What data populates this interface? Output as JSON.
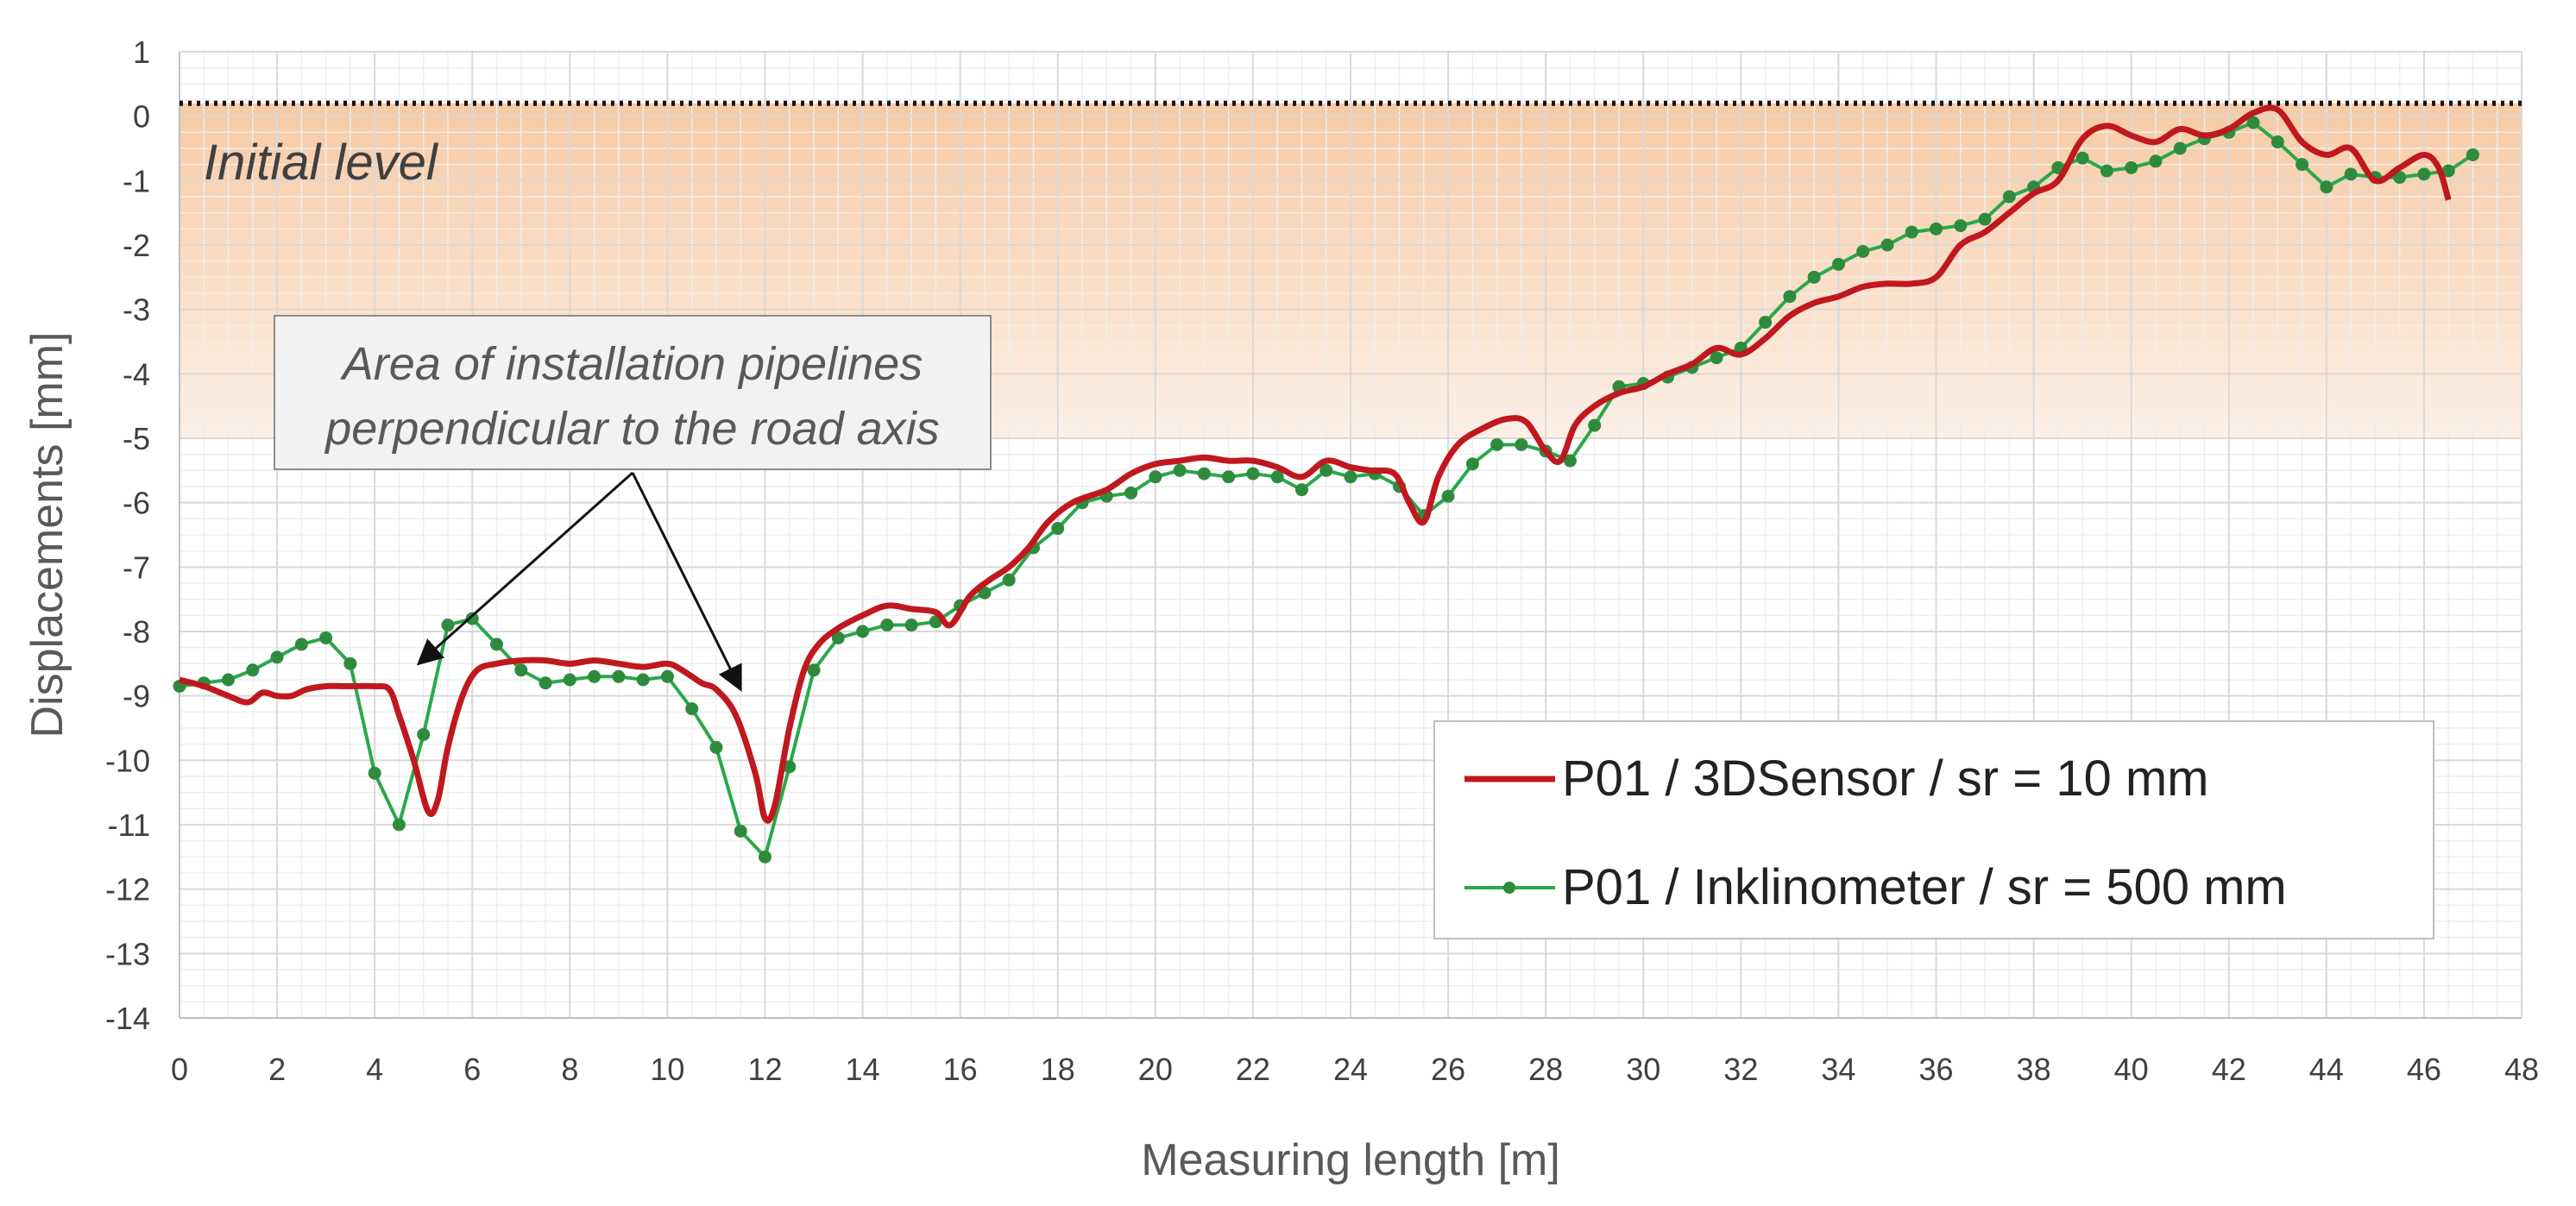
{
  "colors": {
    "series_red": "#c0181e",
    "series_green": "#2aa84a",
    "marker_green": "#2e8b3e",
    "band_top": "#f6c49b",
    "band_bottom": "#fdeee2",
    "grid_major": "#d9d9d9",
    "grid_minor": "#eeeeee"
  },
  "chart_data": {
    "type": "line",
    "xlabel": "Measuring length [m]",
    "ylabel": "Displacements [mm]",
    "xlim": [
      0,
      48
    ],
    "ylim": [
      -14,
      1
    ],
    "x_ticks": [
      "0",
      "2",
      "4",
      "6",
      "8",
      "10",
      "12",
      "14",
      "16",
      "18",
      "20",
      "22",
      "24",
      "26",
      "28",
      "30",
      "32",
      "34",
      "36",
      "38",
      "40",
      "42",
      "44",
      "46",
      "48"
    ],
    "y_ticks": [
      "1",
      "0",
      "-1",
      "-2",
      "-3",
      "-4",
      "-5",
      "-6",
      "-7",
      "-8",
      "-9",
      "-10",
      "-11",
      "-12",
      "-13",
      "-14"
    ],
    "reference_line": {
      "label": "Initial level",
      "value": 0.2
    },
    "shaded_band": {
      "from": 0.2,
      "to": -5
    },
    "annotation": {
      "lines": [
        "Area of installation pipelines",
        "perpendicular to the road axis"
      ],
      "arrow_targets": [
        [
          4.9,
          -8.5
        ],
        [
          11.5,
          -8.9
        ]
      ]
    },
    "legend_position": "lower-right",
    "series": [
      {
        "name": "P01 / 3DSensor / sr = 10 mm",
        "style": "line",
        "x": [
          0,
          0.5,
          1,
          1.4,
          1.7,
          2,
          2.3,
          2.6,
          3,
          3.5,
          4,
          4.3,
          4.5,
          4.8,
          5.1,
          5.3,
          5.5,
          5.8,
          6.1,
          6.5,
          7,
          7.5,
          8,
          8.5,
          9,
          9.5,
          10,
          10.3,
          10.7,
          11,
          11.4,
          11.8,
          12,
          12.2,
          12.5,
          12.8,
          13.1,
          13.5,
          14,
          14.5,
          15,
          15.5,
          15.8,
          16.2,
          16.6,
          17,
          17.4,
          17.8,
          18.3,
          19,
          19.5,
          20,
          20.5,
          21,
          21.5,
          22,
          22.5,
          23,
          23.5,
          24,
          24.4,
          24.9,
          25.2,
          25.5,
          25.8,
          26.2,
          26.7,
          27.2,
          27.6,
          28,
          28.3,
          28.6,
          29,
          29.5,
          30,
          30.5,
          31,
          31.5,
          32,
          32.5,
          33,
          33.5,
          34,
          34.5,
          35,
          35.5,
          36,
          36.5,
          37,
          37.5,
          38,
          38.5,
          39,
          39.5,
          40,
          40.5,
          41,
          41.5,
          42,
          42.5,
          43,
          43.5,
          44,
          44.5,
          45,
          45.5,
          46,
          46.3,
          46.5
        ],
        "y": [
          -8.75,
          -8.85,
          -9.0,
          -9.1,
          -8.95,
          -9.0,
          -9.0,
          -8.9,
          -8.85,
          -8.85,
          -8.85,
          -8.9,
          -9.3,
          -10.0,
          -10.8,
          -10.6,
          -9.8,
          -9.0,
          -8.6,
          -8.5,
          -8.45,
          -8.45,
          -8.5,
          -8.45,
          -8.5,
          -8.55,
          -8.5,
          -8.6,
          -8.8,
          -8.9,
          -9.3,
          -10.2,
          -10.9,
          -10.7,
          -9.5,
          -8.6,
          -8.2,
          -7.95,
          -7.75,
          -7.6,
          -7.65,
          -7.7,
          -7.9,
          -7.45,
          -7.2,
          -7.0,
          -6.7,
          -6.3,
          -6.0,
          -5.8,
          -5.55,
          -5.4,
          -5.35,
          -5.3,
          -5.35,
          -5.35,
          -5.45,
          -5.6,
          -5.35,
          -5.45,
          -5.5,
          -5.55,
          -6.0,
          -6.3,
          -5.6,
          -5.1,
          -4.85,
          -4.7,
          -4.75,
          -5.2,
          -5.35,
          -4.8,
          -4.5,
          -4.3,
          -4.2,
          -4.0,
          -3.85,
          -3.6,
          -3.7,
          -3.45,
          -3.1,
          -2.9,
          -2.8,
          -2.65,
          -2.6,
          -2.6,
          -2.5,
          -2.0,
          -1.8,
          -1.5,
          -1.2,
          -1.0,
          -0.35,
          -0.15,
          -0.3,
          -0.4,
          -0.2,
          -0.3,
          -0.2,
          0.05,
          0.1,
          -0.4,
          -0.6,
          -0.5,
          -1.0,
          -0.8,
          -0.6,
          -0.8,
          -1.3
        ]
      },
      {
        "name": "P01 / Inklinometer / sr = 500 mm",
        "style": "line-marker",
        "x": [
          0,
          0.5,
          1,
          1.5,
          2,
          2.5,
          3,
          3.5,
          4,
          4.5,
          5,
          5.5,
          6,
          6.5,
          7,
          7.5,
          8,
          8.5,
          9,
          9.5,
          10,
          10.5,
          11,
          11.5,
          12,
          12.5,
          13,
          13.5,
          14,
          14.5,
          15,
          15.5,
          16,
          16.5,
          17,
          17.5,
          18,
          18.5,
          19,
          19.5,
          20,
          20.5,
          21,
          21.5,
          22,
          22.5,
          23,
          23.5,
          24,
          24.5,
          25,
          25.5,
          26,
          26.5,
          27,
          27.5,
          28,
          28.5,
          29,
          29.5,
          30,
          30.5,
          31,
          31.5,
          32,
          32.5,
          33,
          33.5,
          34,
          34.5,
          35,
          35.5,
          36,
          36.5,
          37,
          37.5,
          38,
          38.5,
          39,
          39.5,
          40,
          40.5,
          41,
          41.5,
          42,
          42.5,
          43,
          43.5,
          44,
          44.5,
          45,
          45.5,
          46,
          46.5,
          47
        ],
        "y": [
          -8.85,
          -8.8,
          -8.75,
          -8.6,
          -8.4,
          -8.2,
          -8.1,
          -8.5,
          -10.2,
          -11.0,
          -9.6,
          -7.9,
          -7.8,
          -8.2,
          -8.6,
          -8.8,
          -8.75,
          -8.7,
          -8.7,
          -8.75,
          -8.7,
          -9.2,
          -9.8,
          -11.1,
          -11.5,
          -10.1,
          -8.6,
          -8.1,
          -8.0,
          -7.9,
          -7.9,
          -7.85,
          -7.6,
          -7.4,
          -7.2,
          -6.7,
          -6.4,
          -6.0,
          -5.9,
          -5.85,
          -5.6,
          -5.5,
          -5.55,
          -5.6,
          -5.55,
          -5.6,
          -5.8,
          -5.5,
          -5.6,
          -5.55,
          -5.75,
          -6.2,
          -5.9,
          -5.4,
          -5.1,
          -5.1,
          -5.2,
          -5.35,
          -4.8,
          -4.2,
          -4.15,
          -4.05,
          -3.9,
          -3.75,
          -3.6,
          -3.2,
          -2.8,
          -2.5,
          -2.3,
          -2.1,
          -2.0,
          -1.8,
          -1.75,
          -1.7,
          -1.6,
          -1.25,
          -1.1,
          -0.8,
          -0.65,
          -0.85,
          -0.8,
          -0.7,
          -0.5,
          -0.35,
          -0.25,
          -0.1,
          -0.4,
          -0.75,
          -1.1,
          -0.9,
          -0.95,
          -0.95,
          -0.9,
          -0.85,
          -0.6
        ]
      }
    ]
  }
}
